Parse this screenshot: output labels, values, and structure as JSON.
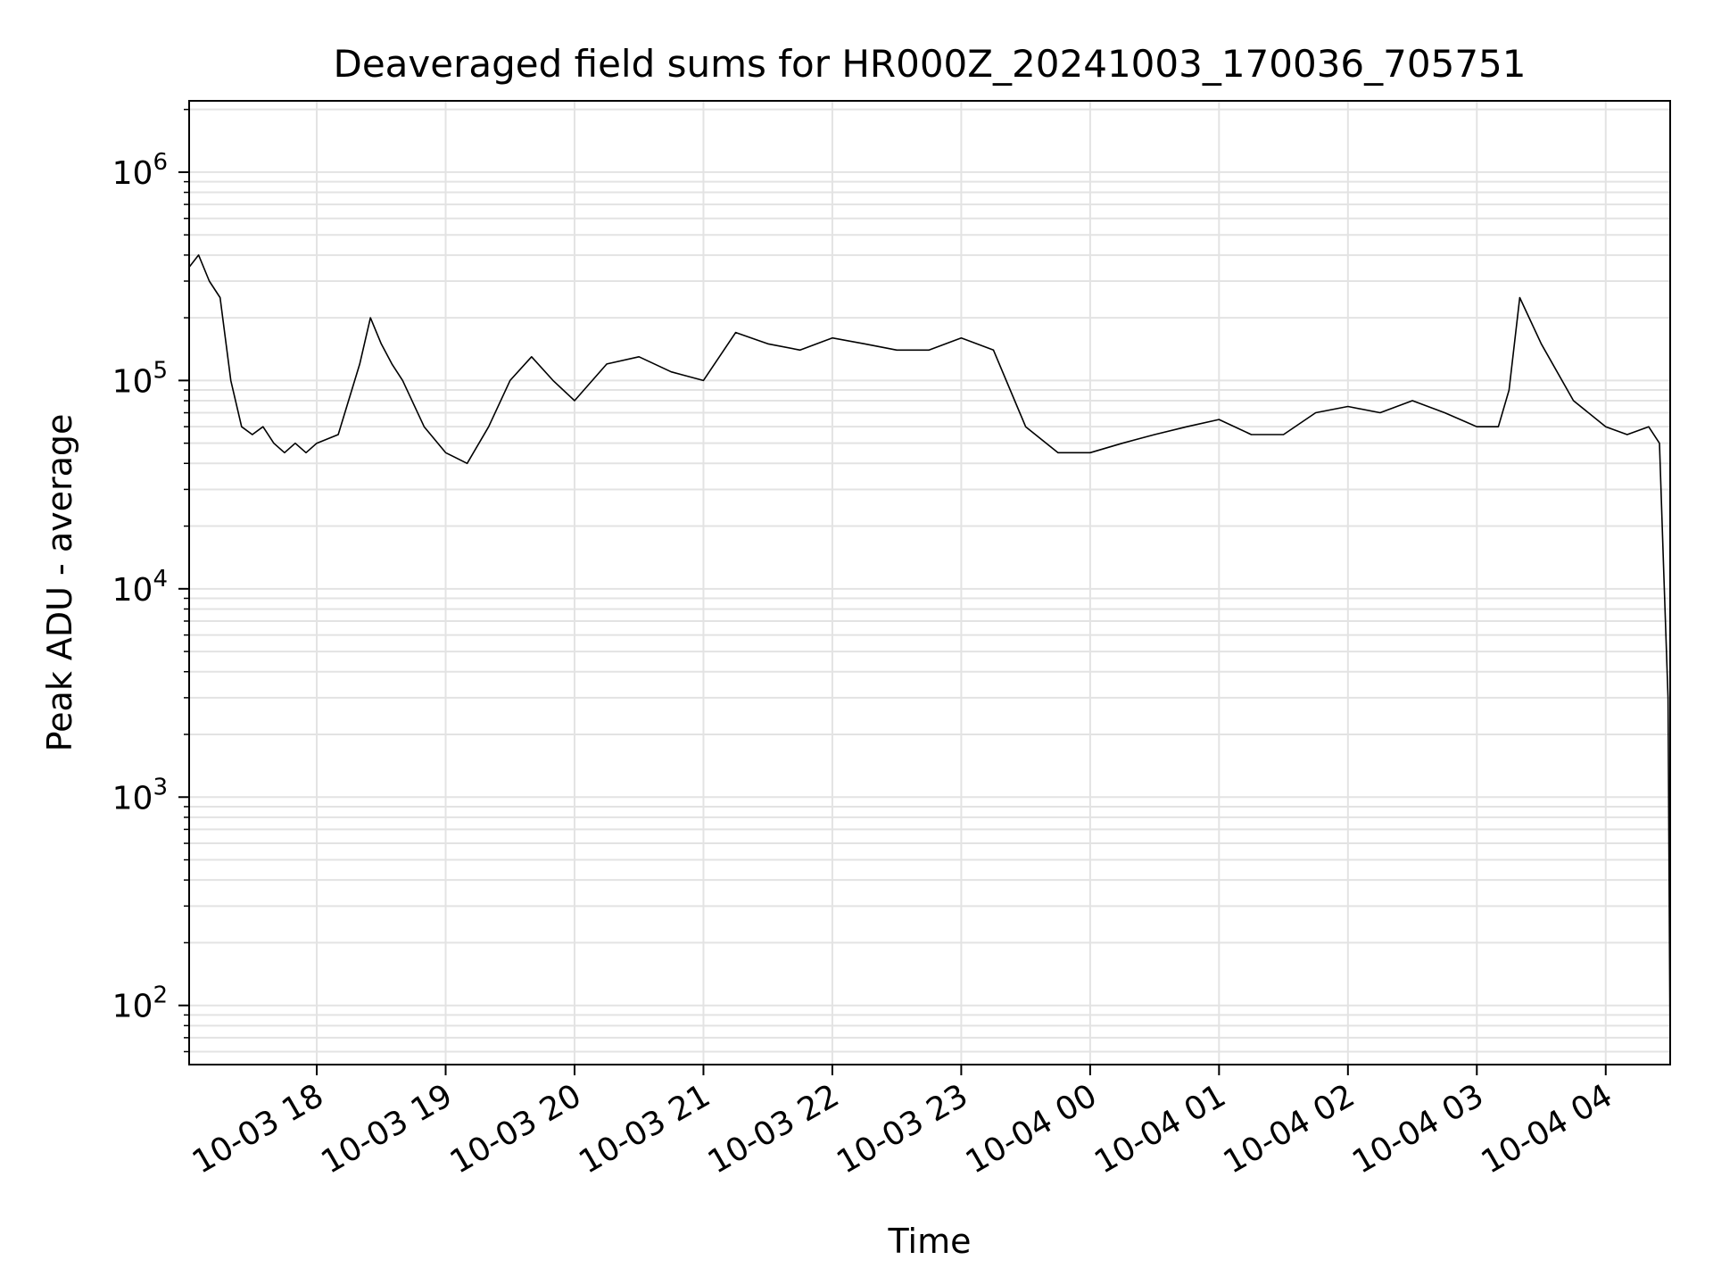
{
  "chart_data": {
    "type": "line",
    "title": "Deaveraged field sums for HR000Z_20241003_170036_705751",
    "xlabel": "Time",
    "ylabel": "Peak ADU - average",
    "xscale": "time",
    "yscale": "log",
    "xlim": [
      "2024-10-03 17:00:36",
      "2024-10-04 04:30"
    ],
    "ylim": [
      52,
      2200000
    ],
    "grid": true,
    "legend": "none",
    "line_color": "#000000",
    "x_ticks": [
      {
        "value": "2024-10-03 18:00",
        "label": "10-03 18"
      },
      {
        "value": "2024-10-03 19:00",
        "label": "10-03 19"
      },
      {
        "value": "2024-10-03 20:00",
        "label": "10-03 20"
      },
      {
        "value": "2024-10-03 21:00",
        "label": "10-03 21"
      },
      {
        "value": "2024-10-03 22:00",
        "label": "10-03 22"
      },
      {
        "value": "2024-10-03 23:00",
        "label": "10-03 23"
      },
      {
        "value": "2024-10-04 00:00",
        "label": "10-04 00"
      },
      {
        "value": "2024-10-04 01:00",
        "label": "10-04 01"
      },
      {
        "value": "2024-10-04 02:00",
        "label": "10-04 02"
      },
      {
        "value": "2024-10-04 03:00",
        "label": "10-04 03"
      },
      {
        "value": "2024-10-04 04:00",
        "label": "10-04 04"
      }
    ],
    "y_ticks": [
      {
        "value": 100,
        "base": "10",
        "exp": "2"
      },
      {
        "value": 1000,
        "base": "10",
        "exp": "3"
      },
      {
        "value": 10000,
        "base": "10",
        "exp": "4"
      },
      {
        "value": 100000,
        "base": "10",
        "exp": "5"
      },
      {
        "value": 1000000,
        "base": "10",
        "exp": "6"
      }
    ],
    "series": [
      {
        "x": [
          "2024-10-03 17:00:36",
          "2024-10-03 17:05",
          "2024-10-03 17:10",
          "2024-10-03 17:15",
          "2024-10-03 17:20",
          "2024-10-03 17:25",
          "2024-10-03 17:30",
          "2024-10-03 17:35",
          "2024-10-03 17:40",
          "2024-10-03 17:45",
          "2024-10-03 17:50",
          "2024-10-03 17:55",
          "2024-10-03 18:00",
          "2024-10-03 18:10",
          "2024-10-03 18:20",
          "2024-10-03 18:25",
          "2024-10-03 18:30",
          "2024-10-03 18:35",
          "2024-10-03 18:40",
          "2024-10-03 18:50",
          "2024-10-03 19:00",
          "2024-10-03 19:10",
          "2024-10-03 19:20",
          "2024-10-03 19:30",
          "2024-10-03 19:40",
          "2024-10-03 19:50",
          "2024-10-03 20:00",
          "2024-10-03 20:15",
          "2024-10-03 20:30",
          "2024-10-03 20:45",
          "2024-10-03 21:00",
          "2024-10-03 21:15",
          "2024-10-03 21:30",
          "2024-10-03 21:45",
          "2024-10-03 22:00",
          "2024-10-03 22:15",
          "2024-10-03 22:30",
          "2024-10-03 22:45",
          "2024-10-03 23:00",
          "2024-10-03 23:15",
          "2024-10-03 23:30",
          "2024-10-03 23:45",
          "2024-10-04 00:00",
          "2024-10-04 00:15",
          "2024-10-04 00:30",
          "2024-10-04 00:45",
          "2024-10-04 01:00",
          "2024-10-04 01:15",
          "2024-10-04 01:30",
          "2024-10-04 01:45",
          "2024-10-04 02:00",
          "2024-10-04 02:15",
          "2024-10-04 02:30",
          "2024-10-04 02:45",
          "2024-10-04 03:00",
          "2024-10-04 03:10",
          "2024-10-04 03:15",
          "2024-10-04 03:20",
          "2024-10-04 03:30",
          "2024-10-04 03:45",
          "2024-10-04 04:00",
          "2024-10-04 04:10",
          "2024-10-04 04:20",
          "2024-10-04 04:25",
          "2024-10-04 04:27",
          "2024-10-04 04:28",
          "2024-10-04 04:29",
          "2024-10-04 04:30"
        ],
        "y": [
          350000,
          400000,
          300000,
          250000,
          100000,
          60000,
          55000,
          60000,
          50000,
          45000,
          50000,
          45000,
          50000,
          55000,
          120000,
          200000,
          150000,
          120000,
          100000,
          60000,
          45000,
          40000,
          60000,
          100000,
          130000,
          100000,
          80000,
          120000,
          130000,
          110000,
          100000,
          170000,
          150000,
          140000,
          160000,
          150000,
          140000,
          140000,
          160000,
          140000,
          60000,
          45000,
          45000,
          50000,
          55000,
          60000,
          65000,
          55000,
          55000,
          70000,
          75000,
          70000,
          80000,
          70000,
          60000,
          60000,
          90000,
          250000,
          150000,
          80000,
          60000,
          55000,
          60000,
          50000,
          12000,
          6000,
          3000,
          55
        ]
      }
    ]
  }
}
